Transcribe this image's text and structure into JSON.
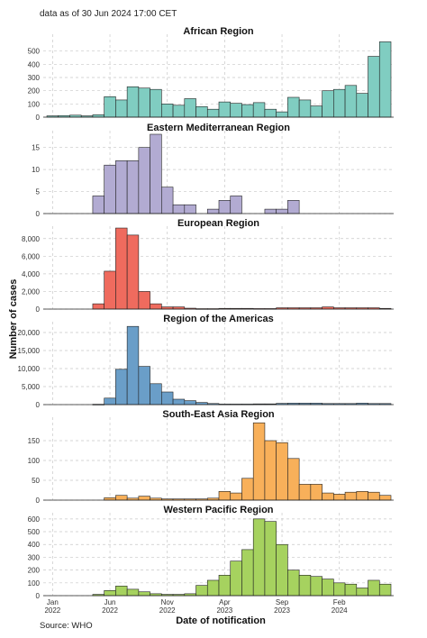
{
  "note": "data as of 30 Jun 2024 17:00 CET",
  "source": "Source: WHO",
  "colors": {
    "african": "#80cdc1",
    "emro": "#b2abd2",
    "europe": "#ef6b5e",
    "americas": "#6a9ec8",
    "searo": "#f8b05a",
    "wpro": "#a6d25f"
  },
  "chart_data": {
    "type": "bar",
    "title": "",
    "xlabel": "Date of notification",
    "ylabel": "Number of cases",
    "x_ticks": [
      {
        "label": "Jan\n2022",
        "month_index": 0
      },
      {
        "label": "Jun\n2022",
        "month_index": 5
      },
      {
        "label": "Nov\n2022",
        "month_index": 10
      },
      {
        "label": "Apr\n2023",
        "month_index": 15
      },
      {
        "label": "Sep\n2023",
        "month_index": 20
      },
      {
        "label": "Feb\n2024",
        "month_index": 25
      }
    ],
    "x_months": [
      "Jan 2022",
      "Feb 2022",
      "Mar 2022",
      "Apr 2022",
      "May 2022",
      "Jun 2022",
      "Jul 2022",
      "Aug 2022",
      "Sep 2022",
      "Oct 2022",
      "Nov 2022",
      "Dec 2022",
      "Jan 2023",
      "Feb 2023",
      "Mar 2023",
      "Apr 2023",
      "May 2023",
      "Jun 2023",
      "Jul 2023",
      "Aug 2023",
      "Sep 2023",
      "Oct 2023",
      "Nov 2023",
      "Dec 2023",
      "Jan 2024",
      "Feb 2024",
      "Mar 2024",
      "Apr 2024",
      "May 2024",
      "Jun 2024"
    ],
    "panels": [
      {
        "title": "African Region",
        "color_key": "african",
        "ylim": [
          0,
          600
        ],
        "yticks": [
          0,
          100,
          200,
          300,
          400,
          500
        ],
        "yticklabels": [
          "0",
          "100",
          "200",
          "300",
          "400",
          "500"
        ],
        "values": [
          10,
          12,
          15,
          10,
          18,
          155,
          130,
          230,
          220,
          210,
          100,
          90,
          140,
          80,
          60,
          115,
          105,
          95,
          110,
          60,
          40,
          150,
          130,
          85,
          200,
          210,
          240,
          180,
          460,
          570
        ]
      },
      {
        "title": "Eastern Mediterranean Region",
        "color_key": "emro",
        "ylim": [
          0,
          18
        ],
        "yticks": [
          0,
          5,
          10,
          15
        ],
        "yticklabels": [
          "0",
          "5",
          "10",
          "15"
        ],
        "values": [
          null,
          null,
          null,
          null,
          4,
          11,
          12,
          12,
          15,
          18,
          6,
          2,
          2,
          null,
          1,
          3,
          4,
          null,
          null,
          1,
          1,
          3,
          null,
          null,
          null,
          null,
          null,
          null,
          null,
          null
        ]
      },
      {
        "title": "European Region",
        "color_key": "europe",
        "ylim": [
          0,
          9000
        ],
        "yticks": [
          0,
          2000,
          4000,
          6000,
          8000
        ],
        "yticklabels": [
          "0",
          "2,000",
          "4,000",
          "6,000",
          "8,000"
        ],
        "values": [
          null,
          null,
          null,
          null,
          600,
          4300,
          9200,
          8400,
          2000,
          600,
          250,
          250,
          100,
          50,
          50,
          80,
          80,
          80,
          60,
          60,
          150,
          150,
          150,
          150,
          250,
          150,
          150,
          150,
          150,
          80
        ]
      },
      {
        "title": "Region of the Americas",
        "color_key": "americas",
        "ylim": [
          0,
          22000
        ],
        "yticks": [
          0,
          5000,
          10000,
          15000,
          20000
        ],
        "yticklabels": [
          "0",
          "5,000",
          "10,000",
          "15,000",
          "20,000"
        ],
        "values": [
          null,
          null,
          null,
          null,
          100,
          1800,
          9800,
          21700,
          10600,
          5800,
          3500,
          1500,
          1100,
          600,
          300,
          150,
          150,
          150,
          200,
          200,
          350,
          400,
          400,
          400,
          300,
          300,
          300,
          400,
          300,
          300
        ]
      },
      {
        "title": "South-East Asia Region",
        "color_key": "searo",
        "ylim": [
          0,
          200
        ],
        "yticks": [
          0,
          50,
          100,
          150
        ],
        "yticklabels": [
          "0",
          "50",
          "100",
          "150"
        ],
        "values": [
          null,
          null,
          null,
          null,
          null,
          6,
          12,
          5,
          10,
          5,
          3,
          3,
          3,
          3,
          5,
          22,
          18,
          55,
          195,
          150,
          145,
          105,
          40,
          40,
          18,
          15,
          20,
          22,
          20,
          12
        ]
      },
      {
        "title": "Western Pacific Region",
        "color_key": "wpro",
        "ylim": [
          0,
          620
        ],
        "yticks": [
          0,
          100,
          200,
          300,
          400,
          500,
          600
        ],
        "yticklabels": [
          "0",
          "100",
          "200",
          "300",
          "400",
          "500",
          "600"
        ],
        "values": [
          null,
          null,
          null,
          null,
          10,
          40,
          75,
          50,
          30,
          15,
          10,
          10,
          15,
          80,
          120,
          160,
          270,
          360,
          600,
          580,
          400,
          200,
          160,
          150,
          130,
          100,
          90,
          60,
          120,
          90
        ]
      }
    ]
  }
}
